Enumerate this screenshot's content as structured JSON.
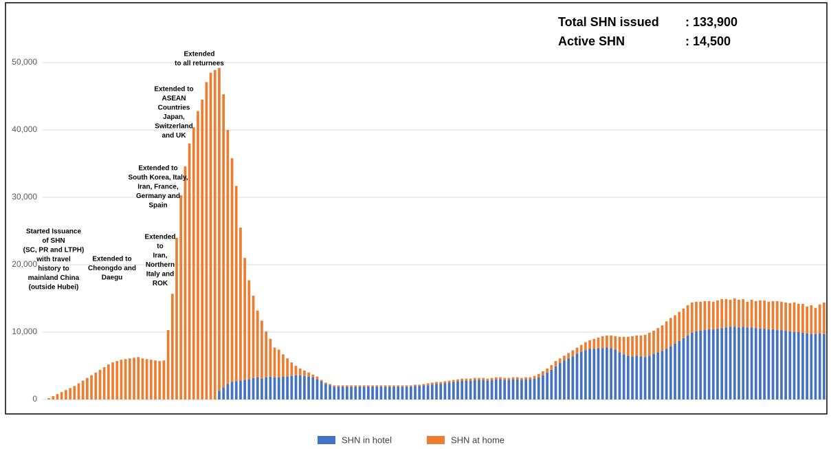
{
  "chart_data": {
    "type": "stacked-bar",
    "ylim": [
      0,
      50000
    ],
    "yticks": [
      0,
      {
        "value": 10000,
        "label": "10,000"
      },
      {
        "value": 20000,
        "label": "20,000"
      },
      {
        "value": 30000,
        "label": "30,000"
      },
      {
        "value": 40000,
        "label": "40,000"
      },
      {
        "value": 50000,
        "label": "50,000"
      }
    ],
    "grid": true,
    "legend": "bottom",
    "stats": [
      {
        "label": "Total SHN issued",
        "value": ": 133,900"
      },
      {
        "label": "Active SHN",
        "value": ": 14,500"
      }
    ],
    "annotations": [
      {
        "lines": [
          "Started Issuance",
          "of SHN",
          "(SC, PR and LTPH)",
          "with travel",
          "history to",
          "mainland China",
          "(outside Hubei)"
        ]
      },
      {
        "lines": [
          "Extended to",
          "Cheongdo and",
          "Daegu"
        ]
      },
      {
        "lines": [
          "Extended",
          "to",
          "Iran,",
          "Northern",
          "Italy and",
          "ROK"
        ]
      },
      {
        "lines": [
          "Extended to",
          "South Korea, Italy,",
          "Iran, France,",
          "Germany and",
          "Spain"
        ]
      },
      {
        "lines": [
          "Extended to",
          "ASEAN",
          "Countries",
          "Japan,",
          "Switzerland",
          "and UK"
        ]
      },
      {
        "lines": [
          "Extended",
          "to all returnees"
        ]
      }
    ],
    "series": [
      {
        "name": "SHN in hotel",
        "color": "#4472c4",
        "values": [
          0,
          0,
          0,
          0,
          0,
          0,
          0,
          0,
          0,
          0,
          0,
          0,
          0,
          0,
          0,
          0,
          0,
          0,
          0,
          0,
          0,
          0,
          0,
          0,
          0,
          0,
          0,
          0,
          0,
          0,
          0,
          0,
          0,
          0,
          0,
          0,
          0,
          0,
          0,
          0,
          1300,
          1800,
          2300,
          2600,
          2700,
          2800,
          2900,
          3000,
          3200,
          3300,
          3100,
          3300,
          3400,
          3300,
          3300,
          3400,
          3400,
          3500,
          3600,
          3600,
          3500,
          3400,
          3300,
          3000,
          2700,
          2300,
          2100,
          1900,
          1900,
          1900,
          1900,
          1900,
          1900,
          1900,
          1900,
          1900,
          1900,
          1900,
          1900,
          1900,
          1900,
          1900,
          1900,
          1900,
          1900,
          1900,
          2000,
          2000,
          2100,
          2100,
          2200,
          2300,
          2300,
          2400,
          2500,
          2600,
          2700,
          2800,
          2800,
          2800,
          2900,
          2900,
          2900,
          2800,
          2900,
          3000,
          3000,
          2900,
          2900,
          3000,
          3000,
          2900,
          3000,
          3000,
          3100,
          3300,
          3600,
          4000,
          4400,
          4900,
          5400,
          5800,
          6100,
          6400,
          6800,
          7100,
          7300,
          7500,
          7500,
          7600,
          7600,
          7700,
          7600,
          7400,
          7000,
          6700,
          6500,
          6400,
          6500,
          6400,
          6300,
          6500,
          6800,
          7000,
          7200,
          7500,
          7900,
          8300,
          8700,
          9100,
          9500,
          9900,
          10100,
          10200,
          10300,
          10400,
          10400,
          10500,
          10600,
          10700,
          10800,
          10800,
          10700,
          10800,
          10700,
          10700,
          10600,
          10500,
          10500,
          10400,
          10400,
          10300,
          10300,
          10200,
          10100,
          10000,
          10000,
          9900,
          9800,
          9700,
          9700,
          9800,
          9700
        ]
      },
      {
        "name": "SHN at home",
        "color": "#ed7d31",
        "values": [
          200,
          500,
          800,
          1100,
          1400,
          1700,
          2000,
          2400,
          2800,
          3200,
          3600,
          4000,
          4400,
          4800,
          5200,
          5500,
          5700,
          5900,
          6000,
          6100,
          6200,
          6300,
          6100,
          6000,
          5900,
          5800,
          5700,
          5800,
          10300,
          15700,
          24000,
          30300,
          34600,
          38000,
          40400,
          42800,
          44500,
          47100,
          48500,
          48900,
          47900,
          43500,
          37700,
          33200,
          29000,
          22700,
          18100,
          14700,
          12200,
          9900,
          8600,
          6800,
          5600,
          4400,
          4100,
          3300,
          2700,
          2000,
          1400,
          1000,
          800,
          600,
          400,
          400,
          200,
          200,
          200,
          200,
          200,
          200,
          200,
          200,
          200,
          200,
          200,
          200,
          200,
          200,
          200,
          200,
          200,
          200,
          200,
          200,
          200,
          200,
          200,
          200,
          200,
          300,
          300,
          300,
          300,
          300,
          300,
          300,
          300,
          300,
          300,
          300,
          300,
          300,
          300,
          300,
          300,
          300,
          300,
          300,
          300,
          300,
          300,
          300,
          300,
          300,
          400,
          500,
          600,
          600,
          700,
          800,
          700,
          700,
          800,
          900,
          900,
          1000,
          1200,
          1300,
          1500,
          1600,
          1800,
          1800,
          1900,
          2000,
          2300,
          2600,
          2800,
          3000,
          3000,
          3100,
          3300,
          3400,
          3400,
          3600,
          3800,
          4100,
          4200,
          4200,
          4300,
          4400,
          4500,
          4500,
          4400,
          4300,
          4300,
          4200,
          4100,
          4200,
          4300,
          4200,
          4000,
          4200,
          4100,
          4100,
          3800,
          4100,
          4000,
          4200,
          4200,
          4100,
          4200,
          4300,
          4200,
          4200,
          4200,
          4400,
          4200,
          4300,
          4000,
          4300,
          3900,
          4300,
          4700
        ]
      }
    ]
  }
}
